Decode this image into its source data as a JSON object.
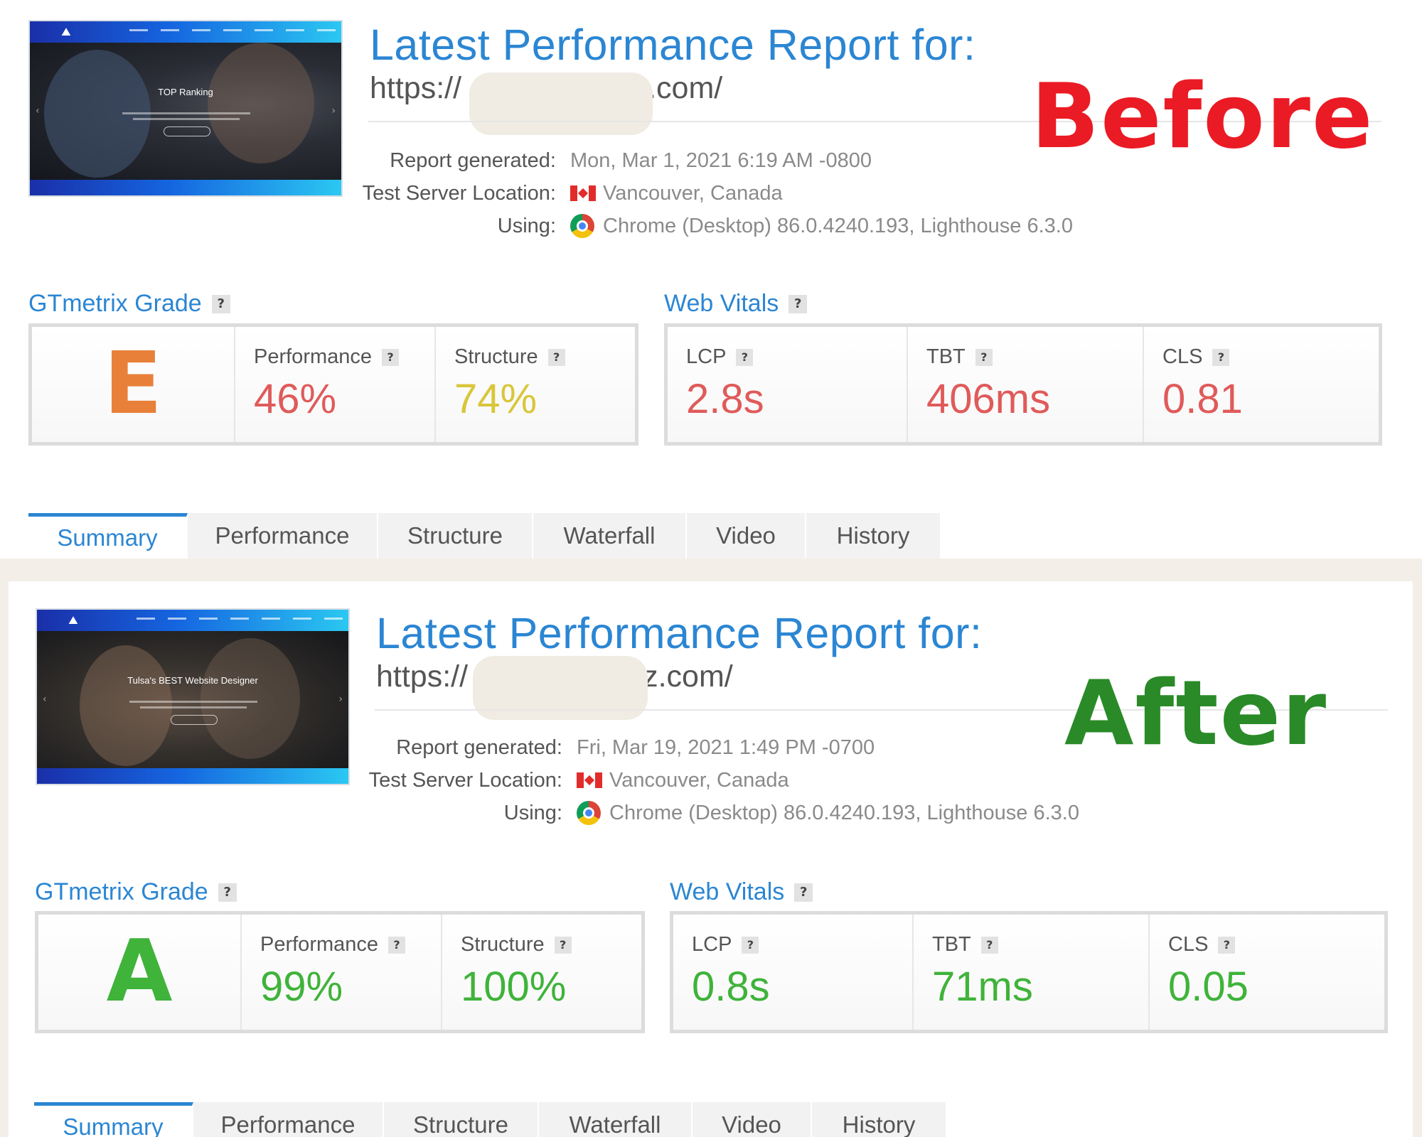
{
  "before": {
    "thumbnail": {
      "hero_text": "TOP Ranking"
    },
    "report": {
      "title": "Latest Performance Report for:",
      "url_prefix": "https://",
      "url_suffix": ".com/"
    },
    "badge": "Before",
    "meta": {
      "generated_label": "Report generated:",
      "generated_value": "Mon, Mar 1, 2021 6:19 AM -0800",
      "location_label": "Test Server Location:",
      "location_value": "Vancouver, Canada",
      "using_label": "Using:",
      "using_value": "Chrome (Desktop) 86.0.4240.193, Lighthouse 6.3.0"
    },
    "grade": {
      "title": "GTmetrix Grade",
      "letter": "E",
      "performance_label": "Performance",
      "performance_value": "46%",
      "structure_label": "Structure",
      "structure_value": "74%"
    },
    "vitals": {
      "title": "Web Vitals",
      "lcp_label": "LCP",
      "lcp_value": "2.8s",
      "tbt_label": "TBT",
      "tbt_value": "406ms",
      "cls_label": "CLS",
      "cls_value": "0.81"
    },
    "tabs": [
      "Summary",
      "Performance",
      "Structure",
      "Waterfall",
      "Video",
      "History"
    ],
    "colors": {
      "grade": "#e8803a",
      "performance": "#e05a5a",
      "structure": "#d9c63a",
      "vitals": "#e05a5a",
      "badge": "#ea1b24"
    }
  },
  "after": {
    "thumbnail": {
      "hero_text": "Tulsa's BEST Website Designer"
    },
    "report": {
      "title": "Latest Performance Report for:",
      "url_prefix": "https://",
      "url_suffix": "z.com/"
    },
    "badge": "After",
    "meta": {
      "generated_label": "Report generated:",
      "generated_value": "Fri, Mar 19, 2021 1:49 PM -0700",
      "location_label": "Test Server Location:",
      "location_value": "Vancouver, Canada",
      "using_label": "Using:",
      "using_value": "Chrome (Desktop) 86.0.4240.193, Lighthouse 6.3.0"
    },
    "grade": {
      "title": "GTmetrix Grade",
      "letter": "A",
      "performance_label": "Performance",
      "performance_value": "99%",
      "structure_label": "Structure",
      "structure_value": "100%"
    },
    "vitals": {
      "title": "Web Vitals",
      "lcp_label": "LCP",
      "lcp_value": "0.8s",
      "tbt_label": "TBT",
      "tbt_value": "71ms",
      "cls_label": "CLS",
      "cls_value": "0.05"
    },
    "tabs": [
      "Summary",
      "Performance",
      "Structure",
      "Waterfall",
      "Video",
      "History"
    ],
    "colors": {
      "grade": "#3fb33a",
      "performance": "#3fb33a",
      "structure": "#3fb33a",
      "vitals": "#3fb33a",
      "badge": "#2a8a28"
    }
  },
  "help_glyph": "?"
}
